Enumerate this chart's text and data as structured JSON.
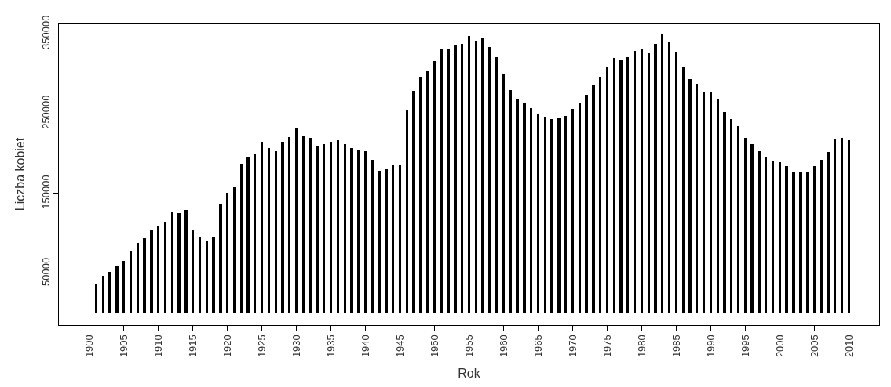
{
  "chart_data": {
    "type": "bar",
    "xlabel": "Rok",
    "ylabel": "Liczba kobiet",
    "x": [
      1900,
      1901,
      1902,
      1903,
      1904,
      1905,
      1906,
      1907,
      1908,
      1909,
      1910,
      1911,
      1912,
      1913,
      1914,
      1915,
      1916,
      1917,
      1918,
      1919,
      1920,
      1921,
      1922,
      1923,
      1924,
      1925,
      1926,
      1927,
      1928,
      1929,
      1930,
      1931,
      1932,
      1933,
      1934,
      1935,
      1936,
      1937,
      1938,
      1939,
      1940,
      1941,
      1942,
      1943,
      1944,
      1945,
      1946,
      1947,
      1948,
      1949,
      1950,
      1951,
      1952,
      1953,
      1954,
      1955,
      1956,
      1957,
      1958,
      1959,
      1960,
      1961,
      1962,
      1963,
      1964,
      1965,
      1966,
      1967,
      1968,
      1969,
      1970,
      1971,
      1972,
      1973,
      1974,
      1975,
      1976,
      1977,
      1978,
      1979,
      1980,
      1981,
      1982,
      1983,
      1984,
      1985,
      1986,
      1987,
      1988,
      1989,
      1990,
      1991,
      1992,
      1993,
      1994,
      1995,
      1996,
      1997,
      1998,
      1999,
      2000,
      2001,
      2002,
      2003,
      2004,
      2005,
      2006,
      2007,
      2008,
      2009,
      2010
    ],
    "values": [
      0,
      37000,
      47000,
      52000,
      60000,
      66000,
      78000,
      88000,
      94000,
      104000,
      110000,
      115000,
      127000,
      125000,
      129000,
      104000,
      96000,
      91000,
      95000,
      137000,
      151000,
      158000,
      187000,
      196000,
      199000,
      215000,
      207000,
      203000,
      215000,
      221000,
      231000,
      223000,
      220000,
      210000,
      212000,
      215000,
      217000,
      212000,
      207000,
      205000,
      203000,
      192000,
      178000,
      180000,
      185000,
      185000,
      254000,
      279000,
      296000,
      304000,
      316000,
      331000,
      332000,
      336000,
      337000,
      347000,
      341000,
      344000,
      334000,
      321000,
      300000,
      280000,
      269000,
      264000,
      257000,
      249000,
      246000,
      243000,
      244000,
      247000,
      256000,
      264000,
      274000,
      285000,
      296000,
      308000,
      320000,
      318000,
      321000,
      329000,
      332000,
      326000,
      337000,
      350000,
      339000,
      327000,
      308000,
      293000,
      287000,
      277000,
      277000,
      269000,
      252000,
      243000,
      234000,
      220000,
      212000,
      203000,
      195000,
      190000,
      189000,
      184000,
      177000,
      176000,
      177000,
      184000,
      192000,
      202000,
      218000,
      220000,
      217000
    ],
    "color": "#000000",
    "xlim": [
      1895.6,
      2014.4
    ],
    "xticks": [
      1900,
      1905,
      1910,
      1915,
      1920,
      1925,
      1930,
      1935,
      1940,
      1945,
      1950,
      1955,
      1960,
      1965,
      1970,
      1975,
      1980,
      1985,
      1990,
      1995,
      2000,
      2005,
      2010
    ],
    "ylim": [
      -15000,
      363000
    ],
    "yticks": [
      50000,
      150000,
      250000,
      350000
    ]
  }
}
